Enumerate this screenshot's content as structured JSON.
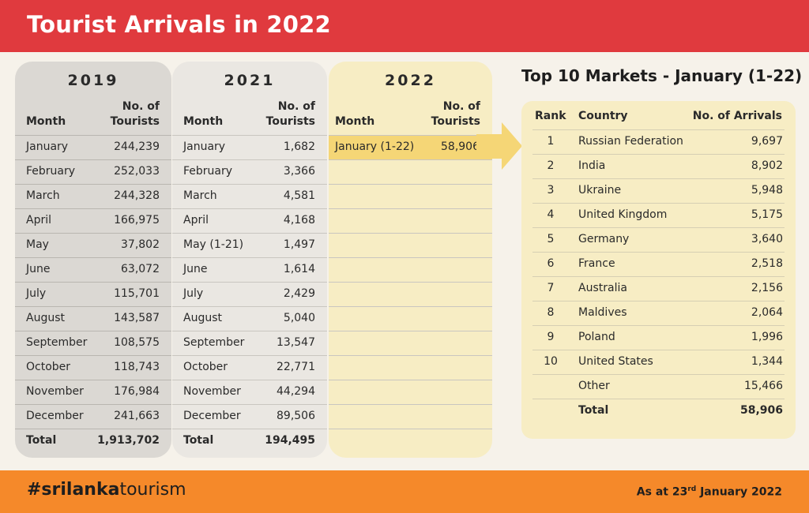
{
  "header": {
    "title": "Tourist Arrivals in 2022"
  },
  "col_headers": {
    "month": "Month",
    "tourists": "No. of\nTourists"
  },
  "table_2019": {
    "year": "2019",
    "rows": [
      {
        "month": "January",
        "value": "244,239"
      },
      {
        "month": "February",
        "value": "252,033"
      },
      {
        "month": "March",
        "value": "244,328"
      },
      {
        "month": "April",
        "value": "166,975"
      },
      {
        "month": "May",
        "value": "37,802"
      },
      {
        "month": "June",
        "value": "63,072"
      },
      {
        "month": "July",
        "value": "115,701"
      },
      {
        "month": "August",
        "value": "143,587"
      },
      {
        "month": "September",
        "value": "108,575"
      },
      {
        "month": "October",
        "value": "118,743"
      },
      {
        "month": "November",
        "value": "176,984"
      },
      {
        "month": "December",
        "value": "241,663"
      }
    ],
    "total_label": "Total",
    "total": "1,913,702"
  },
  "table_2021": {
    "year": "2021",
    "rows": [
      {
        "month": "January",
        "value": "1,682"
      },
      {
        "month": "February",
        "value": "3,366"
      },
      {
        "month": "March",
        "value": "4,581"
      },
      {
        "month": "April",
        "value": "4,168"
      },
      {
        "month": "May (1-21)",
        "value": "1,497"
      },
      {
        "month": "June",
        "value": "1,614"
      },
      {
        "month": "July",
        "value": "2,429"
      },
      {
        "month": "August",
        "value": "5,040"
      },
      {
        "month": "September",
        "value": "13,547"
      },
      {
        "month": "October",
        "value": "22,771"
      },
      {
        "month": "November",
        "value": "44,294"
      },
      {
        "month": "December",
        "value": "89,506"
      }
    ],
    "total_label": "Total",
    "total": "194,495"
  },
  "table_2022": {
    "year": "2022",
    "rows": [
      {
        "month": "January (1-22)",
        "value": "58,906"
      }
    ]
  },
  "top10": {
    "title": "Top 10 Markets - January (1-22)",
    "headers": {
      "rank": "Rank",
      "country": "Country",
      "arrivals": "No. of Arrivals"
    },
    "rows": [
      {
        "rank": "1",
        "country": "Russian Federation",
        "arrivals": "9,697"
      },
      {
        "rank": "2",
        "country": "India",
        "arrivals": "8,902"
      },
      {
        "rank": "3",
        "country": "Ukraine",
        "arrivals": "5,948"
      },
      {
        "rank": "4",
        "country": "United Kingdom",
        "arrivals": "5,175"
      },
      {
        "rank": "5",
        "country": "Germany",
        "arrivals": "3,640"
      },
      {
        "rank": "6",
        "country": "France",
        "arrivals": "2,518"
      },
      {
        "rank": "7",
        "country": "Australia",
        "arrivals": "2,156"
      },
      {
        "rank": "8",
        "country": "Maldives",
        "arrivals": "2,064"
      },
      {
        "rank": "9",
        "country": "Poland",
        "arrivals": "1,996"
      },
      {
        "rank": "10",
        "country": "United States",
        "arrivals": "1,344"
      },
      {
        "rank": "",
        "country": "Other",
        "arrivals": "15,466"
      }
    ],
    "total_label": "Total",
    "total": "58,906"
  },
  "footer": {
    "hashtag_prefix": "#srilanka",
    "hashtag_bold": "",
    "hashtag_suffix": "tourism",
    "asat_prefix": "As at 23",
    "asat_sup": "rd",
    "asat_suffix": " January 2022"
  },
  "colors": {
    "header_red": "#e03a3e",
    "footer_orange": "#f5892a",
    "highlight_yellow": "#f5d676",
    "panel_2022": "#f7edc4",
    "panel_2019": "#dbd8d3",
    "panel_2021": "#eae7e2"
  },
  "icons": {
    "arrow": "arrow-right-icon"
  }
}
